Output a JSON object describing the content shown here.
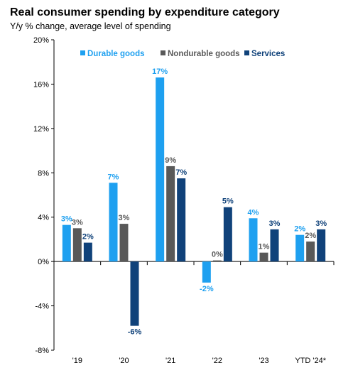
{
  "chart_data": {
    "type": "bar",
    "title": "Real consumer spending by expenditure category",
    "subtitle": "Y/y % change, average level of spending",
    "categories": [
      "'19",
      "'20",
      "'21",
      "'22",
      "'23",
      "YTD '24*"
    ],
    "series": [
      {
        "name": "Durable goods",
        "color": "#1ea0f0",
        "values": [
          3.3,
          7.1,
          16.6,
          -1.9,
          3.9,
          2.4
        ],
        "labels": [
          "3%",
          "7%",
          "17%",
          "-2%",
          "4%",
          "2%"
        ]
      },
      {
        "name": "Nondurable goods",
        "color": "#595959",
        "values": [
          3.0,
          3.4,
          8.6,
          0.1,
          0.8,
          1.8
        ],
        "labels": [
          "3%",
          "3%",
          "9%",
          "0%",
          "1%",
          "2%"
        ]
      },
      {
        "name": "Services",
        "color": "#10427a",
        "values": [
          1.7,
          -5.8,
          7.5,
          4.9,
          2.9,
          2.9
        ],
        "labels": [
          "2%",
          "-6%",
          "7%",
          "5%",
          "3%",
          "3%"
        ]
      }
    ],
    "ylim": [
      -8,
      20
    ],
    "yticks": [
      -8,
      -4,
      0,
      4,
      8,
      12,
      16,
      20
    ],
    "ytick_labels": [
      "-8%",
      "-4%",
      "0%",
      "4%",
      "8%",
      "12%",
      "16%",
      "20%"
    ],
    "grid": false,
    "legend_position": "top"
  }
}
